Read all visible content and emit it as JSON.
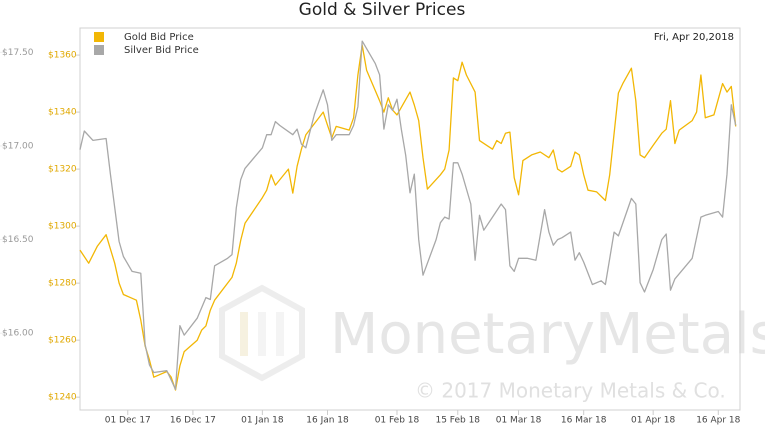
{
  "chart_data": {
    "type": "line",
    "title": "Gold & Silver Prices",
    "date_label": "Fri, Apr 20,2018",
    "watermark": "MonetaryMetals",
    "copyright": "© 2017 Monetary Metals & Co.",
    "legend": "top-left",
    "xlim": [
      "2017-11-20",
      "2018-04-21"
    ],
    "xticks": [
      {
        "value": "2017-12-01",
        "label": "01 Dec 17"
      },
      {
        "value": "2017-12-16",
        "label": "16 Dec 17"
      },
      {
        "value": "2018-01-01",
        "label": "01 Jan 18"
      },
      {
        "value": "2018-01-16",
        "label": "16 Jan 18"
      },
      {
        "value": "2018-02-01",
        "label": "01 Feb 18"
      },
      {
        "value": "2018-02-15",
        "label": "15 Feb 18"
      },
      {
        "value": "2018-03-01",
        "label": "01 Mar 18"
      },
      {
        "value": "2018-03-16",
        "label": "16 Mar 18"
      },
      {
        "value": "2018-04-01",
        "label": "01 Apr 18"
      },
      {
        "value": "2018-04-16",
        "label": "16 Apr 18"
      }
    ],
    "ylim": [
      1235.5,
      1369.5
    ],
    "yticks": [
      {
        "value": 1240,
        "label": "$1240"
      },
      {
        "value": 1260,
        "label": "$1260"
      },
      {
        "value": 1280,
        "label": "$1280"
      },
      {
        "value": 1300,
        "label": "$1300"
      },
      {
        "value": 1320,
        "label": "$1320"
      },
      {
        "value": 1340,
        "label": "$1340"
      },
      {
        "value": 1360,
        "label": "$1360"
      }
    ],
    "y2lim": [
      15.59,
      17.63
    ],
    "y2ticks": [
      {
        "value": 16,
        "label": "$16.00"
      },
      {
        "value": 16.5,
        "label": "$16.50"
      },
      {
        "value": 17,
        "label": "$17.00"
      },
      {
        "value": 17.5,
        "label": "$17.50"
      }
    ],
    "series": [
      {
        "name": "Gold Bid Price",
        "color": "#f2b705",
        "axis": "y",
        "x": [
          "2017-11-20",
          "2017-11-22",
          "2017-11-24",
          "2017-11-26",
          "2017-11-28",
          "2017-11-29",
          "2017-11-30",
          "2017-12-03",
          "2017-12-04",
          "2017-12-05",
          "2017-12-06",
          "2017-12-07",
          "2017-12-10",
          "2017-12-11",
          "2017-12-12",
          "2017-12-13",
          "2017-12-14",
          "2017-12-17",
          "2017-12-18",
          "2017-12-19",
          "2017-12-20",
          "2017-12-21",
          "2017-12-25",
          "2017-12-26",
          "2017-12-27",
          "2017-12-28",
          "2018-01-01",
          "2018-01-02",
          "2018-01-03",
          "2018-01-04",
          "2018-01-07",
          "2018-01-08",
          "2018-01-09",
          "2018-01-10",
          "2018-01-11",
          "2018-01-15",
          "2018-01-16",
          "2018-01-17",
          "2018-01-18",
          "2018-01-21",
          "2018-01-22",
          "2018-01-23",
          "2018-01-24",
          "2018-01-25",
          "2018-01-28",
          "2018-01-29",
          "2018-01-30",
          "2018-01-31",
          "2018-02-01",
          "2018-02-04",
          "2018-02-05",
          "2018-02-06",
          "2018-02-07",
          "2018-02-08",
          "2018-02-11",
          "2018-02-12",
          "2018-02-13",
          "2018-02-14",
          "2018-02-15",
          "2018-02-16",
          "2018-02-17",
          "2018-02-19",
          "2018-02-20",
          "2018-02-23",
          "2018-02-24",
          "2018-02-25",
          "2018-02-26",
          "2018-02-27",
          "2018-02-28",
          "2018-03-01",
          "2018-03-02",
          "2018-03-04",
          "2018-03-06",
          "2018-03-08",
          "2018-03-09",
          "2018-03-10",
          "2018-03-11",
          "2018-03-13",
          "2018-03-14",
          "2018-03-15",
          "2018-03-16",
          "2018-03-17",
          "2018-03-19",
          "2018-03-21",
          "2018-03-22",
          "2018-03-24",
          "2018-03-25",
          "2018-03-27",
          "2018-03-28",
          "2018-03-29",
          "2018-03-30",
          "2018-04-01",
          "2018-04-03",
          "2018-04-04",
          "2018-04-05",
          "2018-04-06",
          "2018-04-07",
          "2018-04-10",
          "2018-04-11",
          "2018-04-12",
          "2018-04-13",
          "2018-04-15",
          "2018-04-17",
          "2018-04-18",
          "2018-04-19",
          "2018-04-20"
        ],
        "values": [
          1291.6,
          1287,
          1293,
          1297,
          1287,
          1280,
          1276,
          1274,
          1267,
          1258,
          1253,
          1247,
          1249,
          1247,
          1242.5,
          1251,
          1256,
          1260,
          1263.5,
          1265,
          1270.5,
          1274,
          1282,
          1287,
          1295,
          1301,
          1310,
          1312.6,
          1318,
          1314.4,
          1320,
          1311.6,
          1321,
          1327,
          1332,
          1340,
          1335.4,
          1331,
          1335,
          1333.7,
          1338,
          1353,
          1363.5,
          1354.7,
          1344,
          1340,
          1345,
          1340.7,
          1339,
          1347,
          1342.5,
          1337,
          1324,
          1313,
          1318,
          1320,
          1326.7,
          1352,
          1351,
          1357.5,
          1353,
          1347,
          1330,
          1327,
          1330,
          1329,
          1332.6,
          1333,
          1317,
          1311,
          1323,
          1325,
          1326,
          1324,
          1326.7,
          1320,
          1319,
          1321,
          1326,
          1325,
          1318,
          1312.6,
          1312,
          1309,
          1318,
          1346.7,
          1350,
          1355.4,
          1344,
          1325,
          1324,
          1328.4,
          1332.6,
          1334,
          1344,
          1329,
          1333.7,
          1337,
          1340,
          1353,
          1338,
          1339,
          1350,
          1347,
          1349,
          1335
        ]
      },
      {
        "name": "Silver Bid Price",
        "color": "#a8a8a8",
        "axis": "y2",
        "x": [
          "2017-11-20",
          "2017-11-21",
          "2017-11-23",
          "2017-11-26",
          "2017-11-27",
          "2017-11-29",
          "2017-11-30",
          "2017-12-02",
          "2017-12-04",
          "2017-12-05",
          "2017-12-06",
          "2017-12-07",
          "2017-12-10",
          "2017-12-11",
          "2017-12-12",
          "2017-12-13",
          "2017-12-14",
          "2017-12-17",
          "2017-12-19",
          "2017-12-20",
          "2017-12-21",
          "2017-12-24",
          "2017-12-25",
          "2017-12-26",
          "2017-12-27",
          "2017-12-28",
          "2018-01-01",
          "2018-01-02",
          "2018-01-03",
          "2018-01-04",
          "2018-01-05",
          "2018-01-08",
          "2018-01-09",
          "2018-01-10",
          "2018-01-11",
          "2018-01-13",
          "2018-01-15",
          "2018-01-16",
          "2018-01-17",
          "2018-01-18",
          "2018-01-21",
          "2018-01-22",
          "2018-01-23",
          "2018-01-24",
          "2018-01-27",
          "2018-01-28",
          "2018-01-29",
          "2018-01-30",
          "2018-01-31",
          "2018-02-01",
          "2018-02-02",
          "2018-02-03",
          "2018-02-04",
          "2018-02-05",
          "2018-02-06",
          "2018-02-07",
          "2018-02-10",
          "2018-02-11",
          "2018-02-12",
          "2018-02-13",
          "2018-02-14",
          "2018-02-15",
          "2018-02-16",
          "2018-02-18",
          "2018-02-19",
          "2018-02-20",
          "2018-02-21",
          "2018-02-23",
          "2018-02-25",
          "2018-02-26",
          "2018-02-27",
          "2018-02-28",
          "2018-03-01",
          "2018-03-03",
          "2018-03-05",
          "2018-03-07",
          "2018-03-08",
          "2018-03-09",
          "2018-03-10",
          "2018-03-11",
          "2018-03-13",
          "2018-03-14",
          "2018-03-15",
          "2018-03-16",
          "2018-03-18",
          "2018-03-20",
          "2018-03-21",
          "2018-03-23",
          "2018-03-24",
          "2018-03-27",
          "2018-03-28",
          "2018-03-29",
          "2018-03-30",
          "2018-04-01",
          "2018-04-03",
          "2018-04-04",
          "2018-04-05",
          "2018-04-06",
          "2018-04-10",
          "2018-04-12",
          "2018-04-13",
          "2018-04-16",
          "2018-04-17",
          "2018-04-18",
          "2018-04-19",
          "2018-04-20"
        ],
        "values": [
          16.98,
          17.08,
          17.03,
          17.04,
          16.85,
          16.49,
          16.41,
          16.33,
          16.32,
          15.94,
          15.83,
          15.79,
          15.8,
          15.75,
          15.7,
          16.04,
          15.99,
          16.08,
          16.19,
          16.18,
          16.36,
          16.4,
          16.42,
          16.67,
          16.82,
          16.88,
          16.99,
          17.06,
          17.06,
          17.13,
          17.11,
          17.06,
          17.09,
          17.01,
          16.99,
          17.17,
          17.3,
          17.22,
          17.03,
          17.06,
          17.06,
          17.11,
          17.21,
          17.56,
          17.44,
          17.38,
          17.09,
          17.22,
          17.19,
          17.25,
          17.09,
          16.95,
          16.75,
          16.85,
          16.5,
          16.31,
          16.5,
          16.59,
          16.62,
          16.61,
          16.91,
          16.91,
          16.85,
          16.69,
          16.39,
          16.63,
          16.55,
          16.62,
          16.69,
          16.66,
          16.36,
          16.33,
          16.4,
          16.4,
          16.39,
          16.66,
          16.54,
          16.47,
          16.5,
          16.51,
          16.54,
          16.39,
          16.43,
          16.38,
          16.26,
          16.28,
          16.26,
          16.54,
          16.52,
          16.72,
          16.69,
          16.27,
          16.22,
          16.34,
          16.5,
          16.53,
          16.23,
          16.29,
          16.4,
          16.62,
          16.63,
          16.65,
          16.62,
          16.85,
          17.22,
          17.11
        ]
      }
    ]
  }
}
